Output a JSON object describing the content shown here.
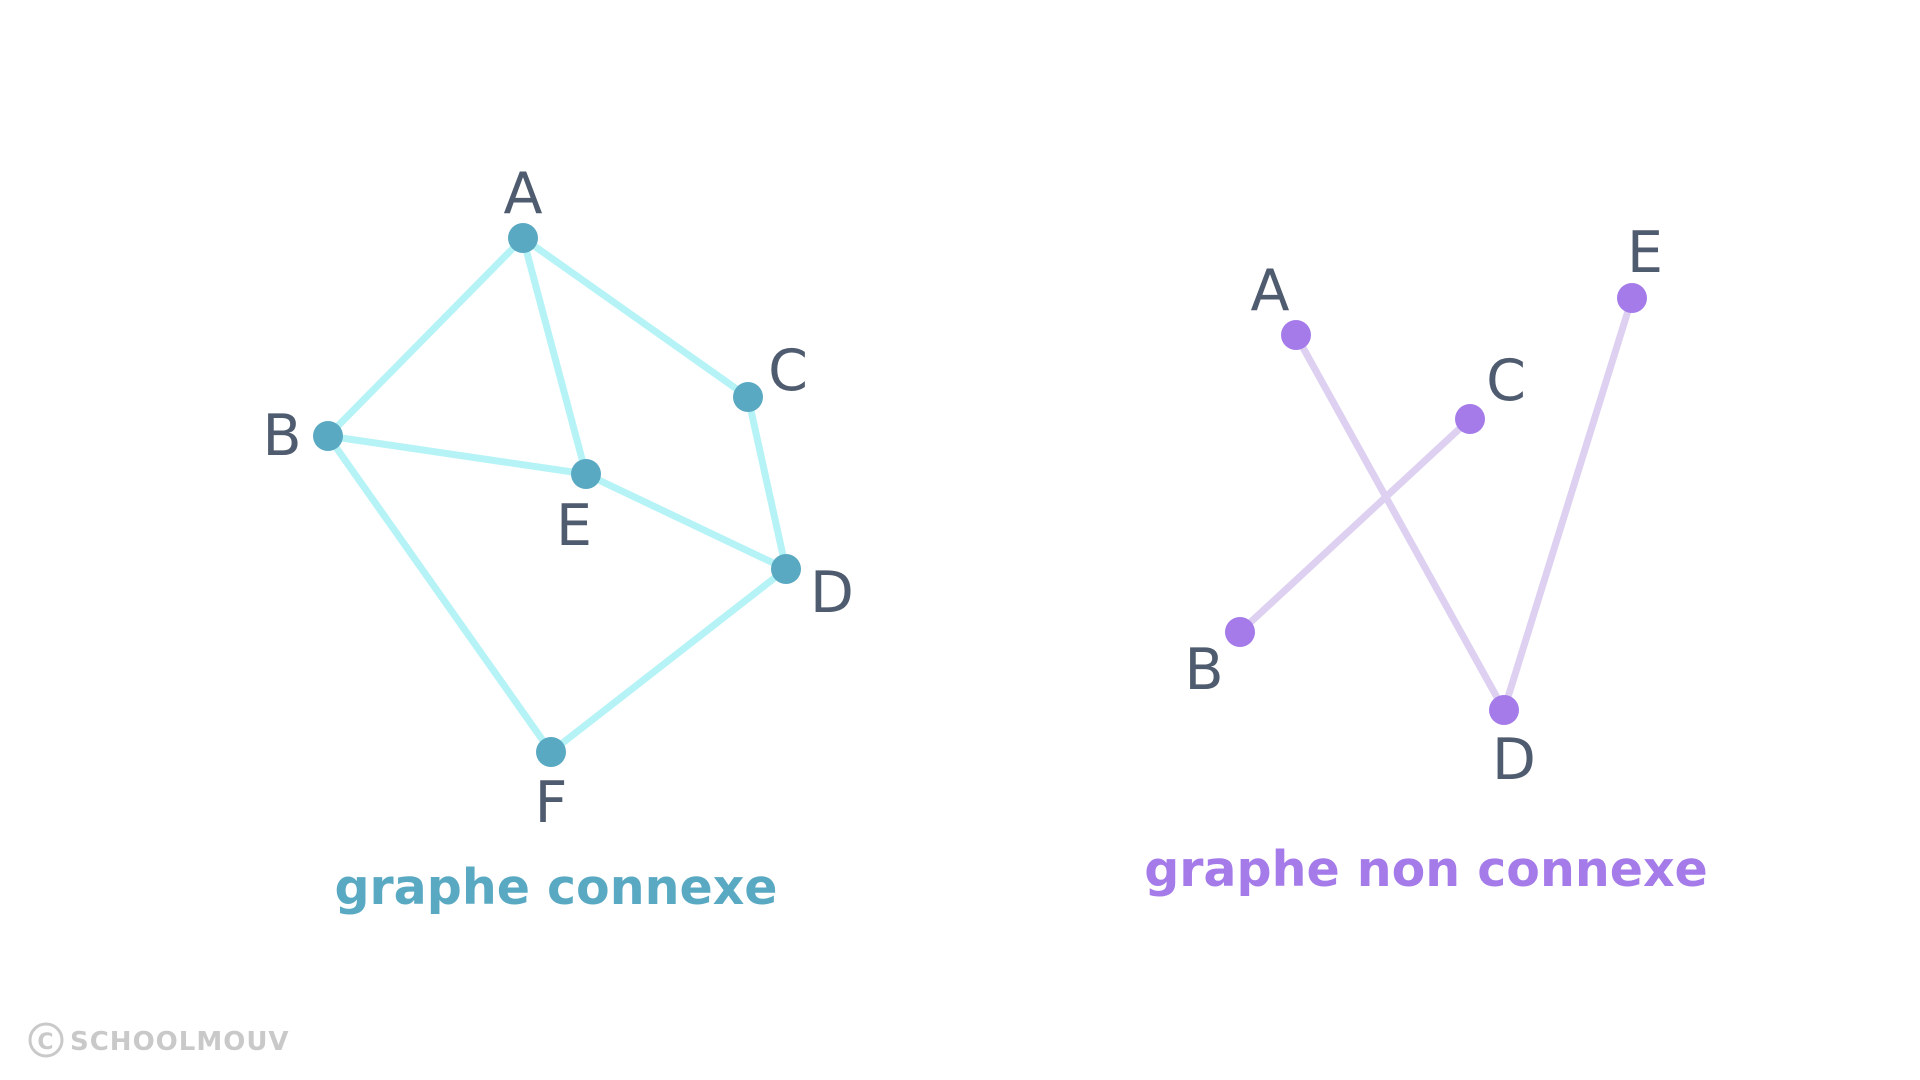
{
  "graphs": [
    {
      "id": "connected",
      "caption": "graphe connexe",
      "node_color": "#5aa9c3",
      "edge_color": "#b6f3f6",
      "label_color": "#4f5b6f",
      "nodes": [
        {
          "id": "A",
          "label": "A"
        },
        {
          "id": "B",
          "label": "B"
        },
        {
          "id": "C",
          "label": "C"
        },
        {
          "id": "D",
          "label": "D"
        },
        {
          "id": "E",
          "label": "E"
        },
        {
          "id": "F",
          "label": "F"
        }
      ],
      "edges": [
        [
          "A",
          "B"
        ],
        [
          "A",
          "E"
        ],
        [
          "A",
          "C"
        ],
        [
          "B",
          "E"
        ],
        [
          "B",
          "F"
        ],
        [
          "C",
          "D"
        ],
        [
          "E",
          "D"
        ],
        [
          "D",
          "F"
        ]
      ]
    },
    {
      "id": "disconnected",
      "caption": "graphe non connexe",
      "node_color": "#a47be9",
      "edge_color": "#ddd0f1",
      "label_color": "#4f5b6f",
      "nodes": [
        {
          "id": "A",
          "label": "A"
        },
        {
          "id": "B",
          "label": "B"
        },
        {
          "id": "C",
          "label": "C"
        },
        {
          "id": "D",
          "label": "D"
        },
        {
          "id": "E",
          "label": "E"
        }
      ],
      "edges": [
        [
          "A",
          "D"
        ],
        [
          "B",
          "C"
        ],
        [
          "D",
          "E"
        ]
      ]
    }
  ],
  "watermark": {
    "symbol": "C",
    "text": "SCHOOLMOUV"
  }
}
